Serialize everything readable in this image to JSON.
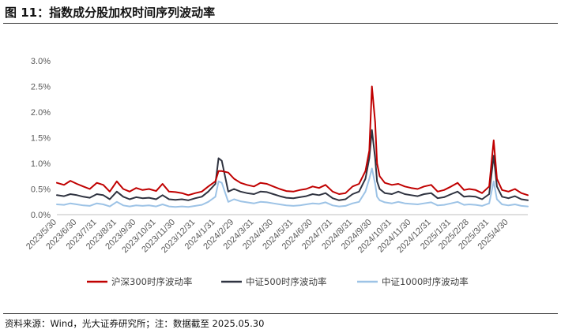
{
  "header": {
    "title": "图 11：指数成分股加权时间序列波动率"
  },
  "footer": {
    "source": "资料来源：Wind，光大证券研究所；注：数据截至 2025.05.30"
  },
  "chart_data": {
    "type": "line",
    "title": "",
    "xlabel": "",
    "ylabel": "",
    "ylim": [
      0,
      3.0
    ],
    "y_ticks": [
      "0.0%",
      "0.5%",
      "1.0%",
      "1.5%",
      "2.0%",
      "2.5%",
      "3.0%"
    ],
    "y_tick_values": [
      0,
      0.5,
      1.0,
      1.5,
      2.0,
      2.5,
      3.0
    ],
    "x_tick_labels": [
      "2023/5/30",
      "2023/6/30",
      "2023/7/31",
      "2023/8/31",
      "2023/9/30",
      "2023/10/31",
      "2023/11/30",
      "2023/12/31",
      "2024/1/31",
      "2024/2/29",
      "2024/3/31",
      "2024/4/30",
      "2024/5/31",
      "2024/6/30",
      "2024/7/31",
      "2024/8/31",
      "2024/9/30",
      "2024/10/31",
      "2024/11/30",
      "2024/12/31",
      "2025/1/31",
      "2025/2/28",
      "2025/3/31",
      "2025/4/30"
    ],
    "x_range": [
      "2023/5/30",
      "2025/5/30"
    ],
    "legend_position": "bottom",
    "grid": false,
    "colors": {
      "series1": "#C00000",
      "series2": "#2F3340",
      "series3": "#9DC3E6"
    },
    "series": [
      {
        "name": "沪深300时序波动率",
        "x": [
          "2023/5/30",
          "2023/6/10",
          "2023/6/20",
          "2023/6/30",
          "2023/7/10",
          "2023/7/20",
          "2023/7/31",
          "2023/8/10",
          "2023/8/20",
          "2023/8/31",
          "2023/9/10",
          "2023/9/20",
          "2023/9/30",
          "2023/10/10",
          "2023/10/20",
          "2023/10/31",
          "2023/11/10",
          "2023/11/20",
          "2023/11/30",
          "2023/12/10",
          "2023/12/20",
          "2023/12/31",
          "2024/1/10",
          "2024/1/20",
          "2024/1/31",
          "2024/2/5",
          "2024/2/10",
          "2024/2/20",
          "2024/2/29",
          "2024/3/10",
          "2024/3/20",
          "2024/3/31",
          "2024/4/10",
          "2024/4/20",
          "2024/4/30",
          "2024/5/10",
          "2024/5/20",
          "2024/5/31",
          "2024/6/10",
          "2024/6/20",
          "2024/6/30",
          "2024/7/10",
          "2024/7/20",
          "2024/7/31",
          "2024/8/10",
          "2024/8/20",
          "2024/8/31",
          "2024/9/10",
          "2024/9/20",
          "2024/9/26",
          "2024/9/30",
          "2024/10/5",
          "2024/10/8",
          "2024/10/12",
          "2024/10/20",
          "2024/10/31",
          "2024/11/10",
          "2024/11/20",
          "2024/11/30",
          "2024/12/10",
          "2024/12/20",
          "2024/12/31",
          "2025/1/10",
          "2025/1/20",
          "2025/1/31",
          "2025/2/10",
          "2025/2/20",
          "2025/2/28",
          "2025/3/10",
          "2025/3/20",
          "2025/3/31",
          "2025/4/7",
          "2025/4/12",
          "2025/4/20",
          "2025/4/30",
          "2025/5/10",
          "2025/5/20",
          "2025/5/30"
        ],
        "values": [
          0.62,
          0.58,
          0.66,
          0.6,
          0.55,
          0.5,
          0.62,
          0.58,
          0.45,
          0.65,
          0.5,
          0.45,
          0.52,
          0.48,
          0.5,
          0.46,
          0.6,
          0.45,
          0.44,
          0.42,
          0.38,
          0.42,
          0.45,
          0.55,
          0.65,
          0.85,
          0.85,
          0.82,
          0.7,
          0.62,
          0.58,
          0.55,
          0.62,
          0.6,
          0.55,
          0.5,
          0.46,
          0.45,
          0.48,
          0.5,
          0.55,
          0.52,
          0.58,
          0.45,
          0.4,
          0.42,
          0.55,
          0.6,
          0.85,
          1.25,
          2.5,
          1.8,
          1.0,
          0.75,
          0.62,
          0.58,
          0.6,
          0.55,
          0.52,
          0.5,
          0.55,
          0.58,
          0.45,
          0.48,
          0.55,
          0.62,
          0.48,
          0.5,
          0.48,
          0.42,
          0.55,
          1.45,
          0.7,
          0.48,
          0.45,
          0.5,
          0.42,
          0.38
        ]
      },
      {
        "name": "中证500时序波动率",
        "x": [
          "2023/5/30",
          "2023/6/10",
          "2023/6/20",
          "2023/6/30",
          "2023/7/10",
          "2023/7/20",
          "2023/7/31",
          "2023/8/10",
          "2023/8/20",
          "2023/8/31",
          "2023/9/10",
          "2023/9/20",
          "2023/9/30",
          "2023/10/10",
          "2023/10/20",
          "2023/10/31",
          "2023/11/10",
          "2023/11/20",
          "2023/11/30",
          "2023/12/10",
          "2023/12/20",
          "2023/12/31",
          "2024/1/10",
          "2024/1/20",
          "2024/1/31",
          "2024/2/5",
          "2024/2/10",
          "2024/2/20",
          "2024/2/29",
          "2024/3/10",
          "2024/3/20",
          "2024/3/31",
          "2024/4/10",
          "2024/4/20",
          "2024/4/30",
          "2024/5/10",
          "2024/5/20",
          "2024/5/31",
          "2024/6/10",
          "2024/6/20",
          "2024/6/30",
          "2024/7/10",
          "2024/7/20",
          "2024/7/31",
          "2024/8/10",
          "2024/8/20",
          "2024/8/31",
          "2024/9/10",
          "2024/9/20",
          "2024/9/26",
          "2024/9/30",
          "2024/10/5",
          "2024/10/8",
          "2024/10/12",
          "2024/10/20",
          "2024/10/31",
          "2024/11/10",
          "2024/11/20",
          "2024/11/30",
          "2024/12/10",
          "2024/12/20",
          "2024/12/31",
          "2025/1/10",
          "2025/1/20",
          "2025/1/31",
          "2025/2/10",
          "2025/2/20",
          "2025/2/28",
          "2025/3/10",
          "2025/3/20",
          "2025/3/31",
          "2025/4/7",
          "2025/4/12",
          "2025/4/20",
          "2025/4/30",
          "2025/5/10",
          "2025/5/20",
          "2025/5/30"
        ],
        "values": [
          0.38,
          0.36,
          0.4,
          0.38,
          0.35,
          0.33,
          0.4,
          0.38,
          0.3,
          0.45,
          0.35,
          0.3,
          0.34,
          0.32,
          0.33,
          0.3,
          0.38,
          0.3,
          0.29,
          0.3,
          0.28,
          0.32,
          0.35,
          0.45,
          0.6,
          1.1,
          1.05,
          0.45,
          0.5,
          0.45,
          0.42,
          0.4,
          0.45,
          0.44,
          0.4,
          0.36,
          0.33,
          0.32,
          0.34,
          0.36,
          0.4,
          0.38,
          0.42,
          0.32,
          0.28,
          0.3,
          0.4,
          0.45,
          0.7,
          1.1,
          1.65,
          1.1,
          0.65,
          0.5,
          0.42,
          0.4,
          0.45,
          0.4,
          0.38,
          0.36,
          0.4,
          0.42,
          0.32,
          0.34,
          0.4,
          0.45,
          0.35,
          0.36,
          0.35,
          0.3,
          0.4,
          1.15,
          0.55,
          0.35,
          0.32,
          0.36,
          0.3,
          0.28
        ]
      },
      {
        "name": "中证1000时序波动率",
        "x": [
          "2023/5/30",
          "2023/6/10",
          "2023/6/20",
          "2023/6/30",
          "2023/7/10",
          "2023/7/20",
          "2023/7/31",
          "2023/8/10",
          "2023/8/20",
          "2023/8/31",
          "2023/9/10",
          "2023/9/20",
          "2023/9/30",
          "2023/10/10",
          "2023/10/20",
          "2023/10/31",
          "2023/11/10",
          "2023/11/20",
          "2023/11/30",
          "2023/12/10",
          "2023/12/20",
          "2023/12/31",
          "2024/1/10",
          "2024/1/20",
          "2024/1/31",
          "2024/2/5",
          "2024/2/10",
          "2024/2/20",
          "2024/2/29",
          "2024/3/10",
          "2024/3/20",
          "2024/3/31",
          "2024/4/10",
          "2024/4/20",
          "2024/4/30",
          "2024/5/10",
          "2024/5/20",
          "2024/5/31",
          "2024/6/10",
          "2024/6/20",
          "2024/6/30",
          "2024/7/10",
          "2024/7/20",
          "2024/7/31",
          "2024/8/10",
          "2024/8/20",
          "2024/8/31",
          "2024/9/10",
          "2024/9/20",
          "2024/9/26",
          "2024/9/30",
          "2024/10/5",
          "2024/10/8",
          "2024/10/12",
          "2024/10/20",
          "2024/10/31",
          "2024/11/10",
          "2024/11/20",
          "2024/11/30",
          "2024/12/10",
          "2024/12/20",
          "2024/12/31",
          "2025/1/10",
          "2025/1/20",
          "2025/1/31",
          "2025/2/10",
          "2025/2/20",
          "2025/2/28",
          "2025/3/10",
          "2025/3/20",
          "2025/3/31",
          "2025/4/7",
          "2025/4/12",
          "2025/4/20",
          "2025/4/30",
          "2025/5/10",
          "2025/5/20",
          "2025/5/30"
        ],
        "values": [
          0.2,
          0.19,
          0.22,
          0.2,
          0.18,
          0.17,
          0.22,
          0.2,
          0.16,
          0.25,
          0.18,
          0.16,
          0.18,
          0.17,
          0.18,
          0.16,
          0.2,
          0.16,
          0.15,
          0.16,
          0.15,
          0.17,
          0.19,
          0.25,
          0.35,
          0.65,
          0.62,
          0.25,
          0.3,
          0.26,
          0.24,
          0.22,
          0.25,
          0.24,
          0.22,
          0.2,
          0.18,
          0.17,
          0.18,
          0.2,
          0.22,
          0.21,
          0.24,
          0.18,
          0.16,
          0.17,
          0.22,
          0.25,
          0.45,
          0.7,
          0.9,
          0.6,
          0.35,
          0.28,
          0.24,
          0.22,
          0.25,
          0.22,
          0.21,
          0.2,
          0.22,
          0.24,
          0.18,
          0.19,
          0.22,
          0.25,
          0.19,
          0.2,
          0.19,
          0.17,
          0.22,
          0.65,
          0.3,
          0.2,
          0.18,
          0.2,
          0.17,
          0.16
        ]
      }
    ]
  }
}
